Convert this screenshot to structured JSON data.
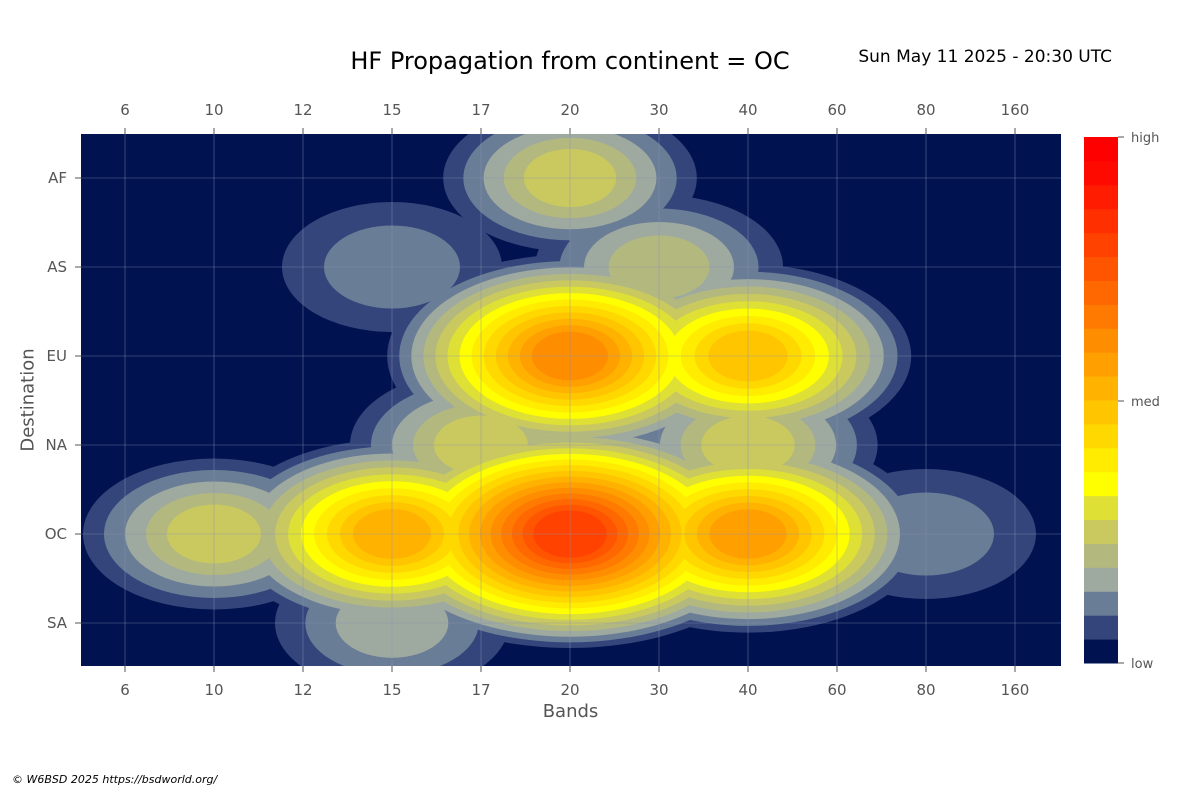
{
  "title": "HF Propagation from continent = OC",
  "timestamp": "Sun May 11 2025 - 20:30 UTC",
  "copyright": "© W6BSD 2025 https://bsdworld.org/",
  "chart_data": {
    "type": "heatmap",
    "xlabel": "Bands",
    "ylabel": "Destination",
    "x": [
      "6",
      "10",
      "12",
      "15",
      "17",
      "20",
      "30",
      "40",
      "60",
      "80",
      "160"
    ],
    "y": [
      "AF",
      "AS",
      "EU",
      "NA",
      "OC",
      "SA"
    ],
    "grid": true,
    "colorbar": {
      "labels": [
        "high",
        "med",
        "low"
      ],
      "levels": 28,
      "colors": [
        "#00124f",
        "#34457b",
        "#6a7d96",
        "#9ea9a0",
        "#b3b87f",
        "#c9c95f",
        "#dfe035",
        "#ffff00",
        "#ffec00",
        "#ffd800",
        "#ffc600",
        "#ffb300",
        "#ffa000",
        "#ff8d00",
        "#ff7a00",
        "#ff6700",
        "#ff5400",
        "#ff4200",
        "#ff2f00",
        "#ff1c00",
        "#ff0a00",
        "#ff0000"
      ]
    },
    "hotspots": [
      {
        "band": "20",
        "dest": "EU",
        "level": 0.62
      },
      {
        "band": "20",
        "dest": "AF",
        "level": 0.22
      },
      {
        "band": "40",
        "dest": "EU",
        "level": 0.48
      },
      {
        "band": "10",
        "dest": "OC",
        "level": 0.25
      },
      {
        "band": "15",
        "dest": "OC",
        "level": 0.52
      },
      {
        "band": "20",
        "dest": "OC",
        "level": 0.8
      },
      {
        "band": "40",
        "dest": "OC",
        "level": 0.58
      },
      {
        "band": "80",
        "dest": "OC",
        "level": 0.1
      },
      {
        "band": "15",
        "dest": "AS",
        "level": 0.1
      },
      {
        "band": "17",
        "dest": "NA",
        "level": 0.25
      },
      {
        "band": "40",
        "dest": "NA",
        "level": 0.24
      },
      {
        "band": "15",
        "dest": "SA",
        "level": 0.15
      },
      {
        "band": "30",
        "dest": "AS",
        "level": 0.2
      }
    ]
  }
}
